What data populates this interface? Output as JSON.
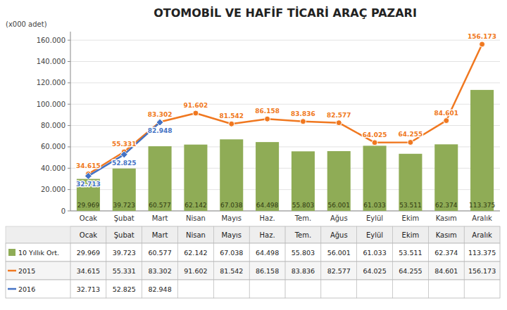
{
  "chart_data": {
    "type": "bar",
    "title": "OTOMOBİL VE HAFİF TİCARİ ARAÇ PAZARI",
    "ylabel": "(x000 adet)",
    "categories": [
      "Ocak",
      "Şubat",
      "Mart",
      "Nisan",
      "Mayıs",
      "Haz.",
      "Tem.",
      "Ağus",
      "Eylül",
      "Ekim",
      "Kasım",
      "Aralık"
    ],
    "series": [
      {
        "name": "10 Yıllık Ort.",
        "type": "bar",
        "color": "#8fac56",
        "values": [
          29969,
          39723,
          60577,
          62142,
          67038,
          64498,
          55803,
          56001,
          61033,
          53511,
          62374,
          113375
        ],
        "value_labels": [
          "29.969",
          "39.723",
          "60.577",
          "62.142",
          "67.038",
          "64.498",
          "55.803",
          "56.001",
          "61.033",
          "53.511",
          "62.374",
          "113.375"
        ]
      },
      {
        "name": "2015",
        "type": "line",
        "color": "#f07820",
        "marker": "circle",
        "values": [
          34615,
          55331,
          83302,
          91602,
          81542,
          86158,
          83836,
          82577,
          64025,
          64255,
          84601,
          156173
        ],
        "value_labels": [
          "34.615",
          "55.331",
          "83.302",
          "91.602",
          "81.542",
          "86.158",
          "83.836",
          "82.577",
          "64.025",
          "64.255",
          "84.601",
          "156.173"
        ]
      },
      {
        "name": "2016",
        "type": "line",
        "color": "#4472c4",
        "marker": "diamond",
        "values": [
          32713,
          52825,
          82948,
          null,
          null,
          null,
          null,
          null,
          null,
          null,
          null,
          null
        ],
        "value_labels": [
          "32.713",
          "52.825",
          "82.948",
          null,
          null,
          null,
          null,
          null,
          null,
          null,
          null,
          null
        ]
      }
    ],
    "ylim": [
      0,
      168000
    ],
    "yticks": [
      0,
      {
        "value": 20000,
        "label": "20.000"
      },
      {
        "value": 40000,
        "label": "40.000"
      },
      {
        "value": 60000,
        "label": "60.000"
      },
      {
        "value": 80000,
        "label": "80.000"
      },
      {
        "value": 100000,
        "label": "100.000"
      },
      {
        "value": 120000,
        "label": "120.000"
      },
      {
        "value": 140000,
        "label": "140.000"
      },
      {
        "value": 160000,
        "label": "160.000"
      }
    ],
    "grid": true,
    "data_labels": true
  }
}
